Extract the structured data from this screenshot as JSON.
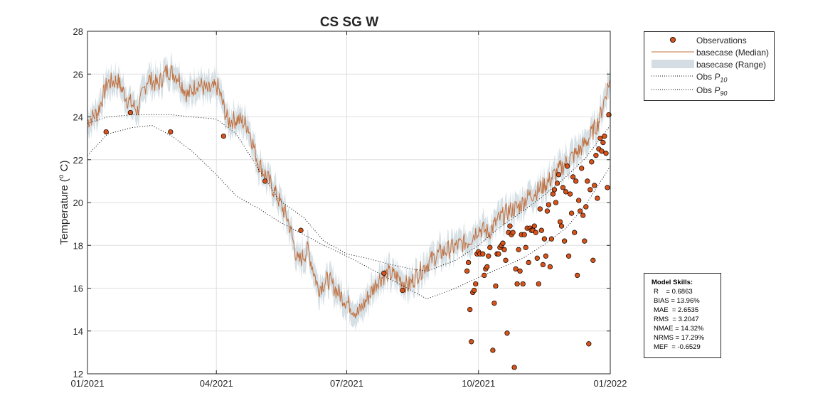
{
  "chart_data": {
    "type": "line",
    "title": "CS SG W",
    "ylabel": "Temperature (°C)",
    "ylabel_parts": {
      "main": "Temperature (",
      "sup": "o",
      "unit": " C)"
    },
    "xlabel": "",
    "xlim": [
      "2021-01-01",
      "2022-01-01"
    ],
    "ylim": [
      12,
      28
    ],
    "x_ticks": [
      "01/2021",
      "04/2021",
      "07/2021",
      "10/2021",
      "01/2022"
    ],
    "x_tick_dates": [
      "2021-01-01",
      "2021-04-01",
      "2021-07-01",
      "2021-10-01",
      "2022-01-01"
    ],
    "y_ticks": [
      12,
      14,
      16,
      18,
      20,
      22,
      24,
      26,
      28
    ],
    "grid": true,
    "legend_position": "outside-top-right",
    "colors": {
      "observations_fill": "#d95319",
      "observations_edge": "#000000",
      "median": "#c1703f",
      "range": "#d3dde3",
      "percentile": "#000000",
      "grid": "#dfdfdf",
      "axis": "#262626"
    },
    "series": [
      {
        "name": "basecase (Median)",
        "kind": "line",
        "x": [
          "2021-01-01",
          "2021-01-08",
          "2021-01-15",
          "2021-01-22",
          "2021-01-29",
          "2021-02-05",
          "2021-02-12",
          "2021-02-19",
          "2021-02-26",
          "2021-03-05",
          "2021-03-12",
          "2021-03-19",
          "2021-03-26",
          "2021-04-02",
          "2021-04-09",
          "2021-04-16",
          "2021-04-23",
          "2021-04-30",
          "2021-05-07",
          "2021-05-14",
          "2021-05-21",
          "2021-05-28",
          "2021-06-04",
          "2021-06-11",
          "2021-06-18",
          "2021-06-25",
          "2021-07-02",
          "2021-07-09",
          "2021-07-16",
          "2021-07-23",
          "2021-07-30",
          "2021-08-06",
          "2021-08-13",
          "2021-08-20",
          "2021-08-27",
          "2021-09-03",
          "2021-09-10",
          "2021-09-17",
          "2021-09-24",
          "2021-10-01",
          "2021-10-08",
          "2021-10-15",
          "2021-10-22",
          "2021-10-29",
          "2021-11-05",
          "2021-11-12",
          "2021-11-19",
          "2021-11-26",
          "2021-12-03",
          "2021-12-10",
          "2021-12-17",
          "2021-12-24",
          "2021-12-31"
        ],
        "y": [
          23.8,
          24.2,
          25.6,
          25.7,
          24.8,
          24.3,
          25.8,
          25.5,
          26.2,
          25.9,
          25.0,
          25.6,
          25.2,
          25.4,
          23.8,
          23.9,
          23.6,
          21.9,
          21.1,
          20.2,
          19.2,
          17.2,
          17.8,
          16.0,
          16.4,
          15.8,
          15.3,
          14.8,
          15.6,
          16.4,
          16.7,
          16.5,
          16.1,
          16.7,
          17.2,
          17.6,
          17.8,
          18.0,
          18.2,
          18.8,
          18.6,
          19.2,
          19.6,
          19.8,
          20.3,
          20.6,
          21.0,
          21.5,
          22.0,
          22.4,
          23.0,
          23.8,
          25.6
        ]
      },
      {
        "name": "basecase (Range)",
        "kind": "band",
        "spread": 0.4
      },
      {
        "name": "Obs P10",
        "name_parts": {
          "main": "Obs ",
          "sym": "P",
          "sub": "10"
        },
        "kind": "line-dotted",
        "x": [
          "2021-01-01",
          "2021-01-15",
          "2021-02-01",
          "2021-02-15",
          "2021-03-01",
          "2021-03-15",
          "2021-04-01",
          "2021-04-15",
          "2021-05-01",
          "2021-05-15",
          "2021-06-01",
          "2021-06-15",
          "2021-07-01",
          "2021-07-15",
          "2021-08-01",
          "2021-08-15",
          "2021-08-26",
          "2021-09-15",
          "2021-10-01",
          "2021-10-15",
          "2021-11-01",
          "2021-11-15",
          "2021-12-01",
          "2021-12-15",
          "2022-01-01"
        ],
        "y": [
          22.2,
          23.2,
          23.5,
          23.6,
          23.1,
          22.4,
          21.3,
          20.3,
          19.7,
          19.1,
          18.5,
          18.0,
          17.5,
          17.0,
          16.4,
          15.9,
          15.5,
          16.0,
          16.5,
          16.9,
          17.4,
          18.0,
          18.8,
          19.9,
          21.7
        ]
      },
      {
        "name": "Obs P90",
        "name_parts": {
          "main": "Obs ",
          "sym": "P",
          "sub": "90"
        },
        "kind": "line-dotted",
        "x": [
          "2021-01-01",
          "2021-01-15",
          "2021-02-01",
          "2021-03-01",
          "2021-03-15",
          "2021-04-01",
          "2021-04-15",
          "2021-05-01",
          "2021-05-15",
          "2021-06-01",
          "2021-06-15",
          "2021-07-01",
          "2021-07-15",
          "2021-08-01",
          "2021-08-15",
          "2021-08-26",
          "2021-09-15",
          "2021-10-01",
          "2021-10-15",
          "2021-11-01",
          "2021-11-15",
          "2021-12-01",
          "2021-12-15",
          "2022-01-01"
        ],
        "y": [
          23.7,
          24.0,
          24.1,
          24.1,
          24.0,
          23.9,
          23.2,
          21.5,
          20.1,
          19.3,
          18.2,
          17.6,
          17.4,
          17.1,
          16.9,
          16.8,
          17.3,
          18.0,
          18.8,
          19.6,
          20.3,
          21.2,
          22.1,
          23.6
        ]
      },
      {
        "name": "Observations",
        "kind": "scatter",
        "x": [
          "2021-01-14",
          "2021-01-31",
          "2021-02-28",
          "2021-04-06",
          "2021-05-05",
          "2021-05-30",
          "2021-07-27",
          "2021-08-09",
          "2021-09-23",
          "2021-09-24",
          "2021-09-25",
          "2021-09-26",
          "2021-09-27",
          "2021-09-28",
          "2021-09-29",
          "2021-09-30",
          "2021-10-01",
          "2021-10-02",
          "2021-10-04",
          "2021-10-05",
          "2021-10-06",
          "2021-10-07",
          "2021-10-08",
          "2021-10-09",
          "2021-10-11",
          "2021-10-12",
          "2021-10-13",
          "2021-10-14",
          "2021-10-15",
          "2021-10-16",
          "2021-10-17",
          "2021-10-18",
          "2021-10-19",
          "2021-10-20",
          "2021-10-21",
          "2021-10-22",
          "2021-10-23",
          "2021-10-24",
          "2021-10-25",
          "2021-10-26",
          "2021-10-27",
          "2021-10-28",
          "2021-10-29",
          "2021-10-30",
          "2021-10-31",
          "2021-11-01",
          "2021-11-02",
          "2021-11-03",
          "2021-11-04",
          "2021-11-05",
          "2021-11-06",
          "2021-11-07",
          "2021-11-08",
          "2021-11-09",
          "2021-11-10",
          "2021-11-11",
          "2021-11-12",
          "2021-11-13",
          "2021-11-14",
          "2021-11-15",
          "2021-11-16",
          "2021-11-17",
          "2021-11-18",
          "2021-11-19",
          "2021-11-20",
          "2021-11-21",
          "2021-11-22",
          "2021-11-23",
          "2021-11-24",
          "2021-11-25",
          "2021-11-26",
          "2021-11-27",
          "2021-11-28",
          "2021-11-29",
          "2021-11-30",
          "2021-12-01",
          "2021-12-02",
          "2021-12-03",
          "2021-12-04",
          "2021-12-05",
          "2021-12-06",
          "2021-12-07",
          "2021-12-08",
          "2021-12-09",
          "2021-12-10",
          "2021-12-11",
          "2021-12-12",
          "2021-12-13",
          "2021-12-14",
          "2021-12-15",
          "2021-12-16",
          "2021-12-17",
          "2021-12-18",
          "2021-12-19",
          "2021-12-20",
          "2021-12-21",
          "2021-12-22",
          "2021-12-23",
          "2021-12-24",
          "2021-12-25",
          "2021-12-26",
          "2021-12-27",
          "2021-12-28",
          "2021-12-29",
          "2021-12-30",
          "2021-12-31"
        ],
        "y": [
          23.3,
          24.2,
          23.3,
          23.1,
          21.0,
          18.7,
          16.7,
          15.9,
          16.8,
          17.2,
          15.0,
          13.5,
          15.8,
          15.9,
          16.2,
          17.6,
          17.7,
          17.6,
          17.6,
          16.6,
          16.9,
          17.0,
          17.5,
          17.9,
          13.1,
          15.3,
          16.1,
          17.6,
          17.6,
          17.9,
          18.0,
          18.1,
          17.8,
          17.3,
          13.9,
          18.6,
          18.9,
          18.5,
          18.6,
          12.3,
          16.9,
          16.2,
          17.8,
          16.8,
          18.5,
          16.2,
          18.5,
          17.9,
          18.8,
          17.2,
          18.8,
          18.7,
          18.7,
          18.9,
          18.6,
          17.4,
          16.2,
          19.7,
          18.7,
          17.1,
          18.3,
          17.5,
          19.6,
          19.9,
          17.0,
          18.3,
          20.4,
          20.6,
          20.0,
          20.9,
          21.3,
          19.1,
          18.9,
          20.7,
          18.2,
          20.5,
          21.7,
          17.5,
          20.4,
          19.5,
          21.2,
          18.6,
          21.0,
          16.6,
          20.1,
          19.6,
          21.6,
          19.4,
          18.2,
          19.8,
          21.0,
          13.4,
          20.6,
          21.9,
          17.3,
          20.8,
          22.2,
          20.2,
          22.5,
          23.0,
          22.4,
          22.8,
          23.1,
          22.3,
          20.7,
          24.1
        ]
      }
    ]
  },
  "legend": {
    "items": [
      {
        "label": "Observations"
      },
      {
        "label": "basecase (Median)"
      },
      {
        "label": "basecase (Range)"
      },
      {
        "label_main": "Obs ",
        "label_sym": "P",
        "label_sub": "10"
      },
      {
        "label_main": "Obs ",
        "label_sym": "P",
        "label_sub": "90"
      }
    ]
  },
  "model_skills": {
    "title": "Model Skills:",
    "lines": [
      "R    = 0.6863",
      "BIAS = 13.96%",
      "MAE  = 2.6535",
      "RMS  = 3.2047",
      "NMAE = 14.32%",
      "NRMS = 17.29%",
      "MEF  = -0.6529"
    ]
  }
}
